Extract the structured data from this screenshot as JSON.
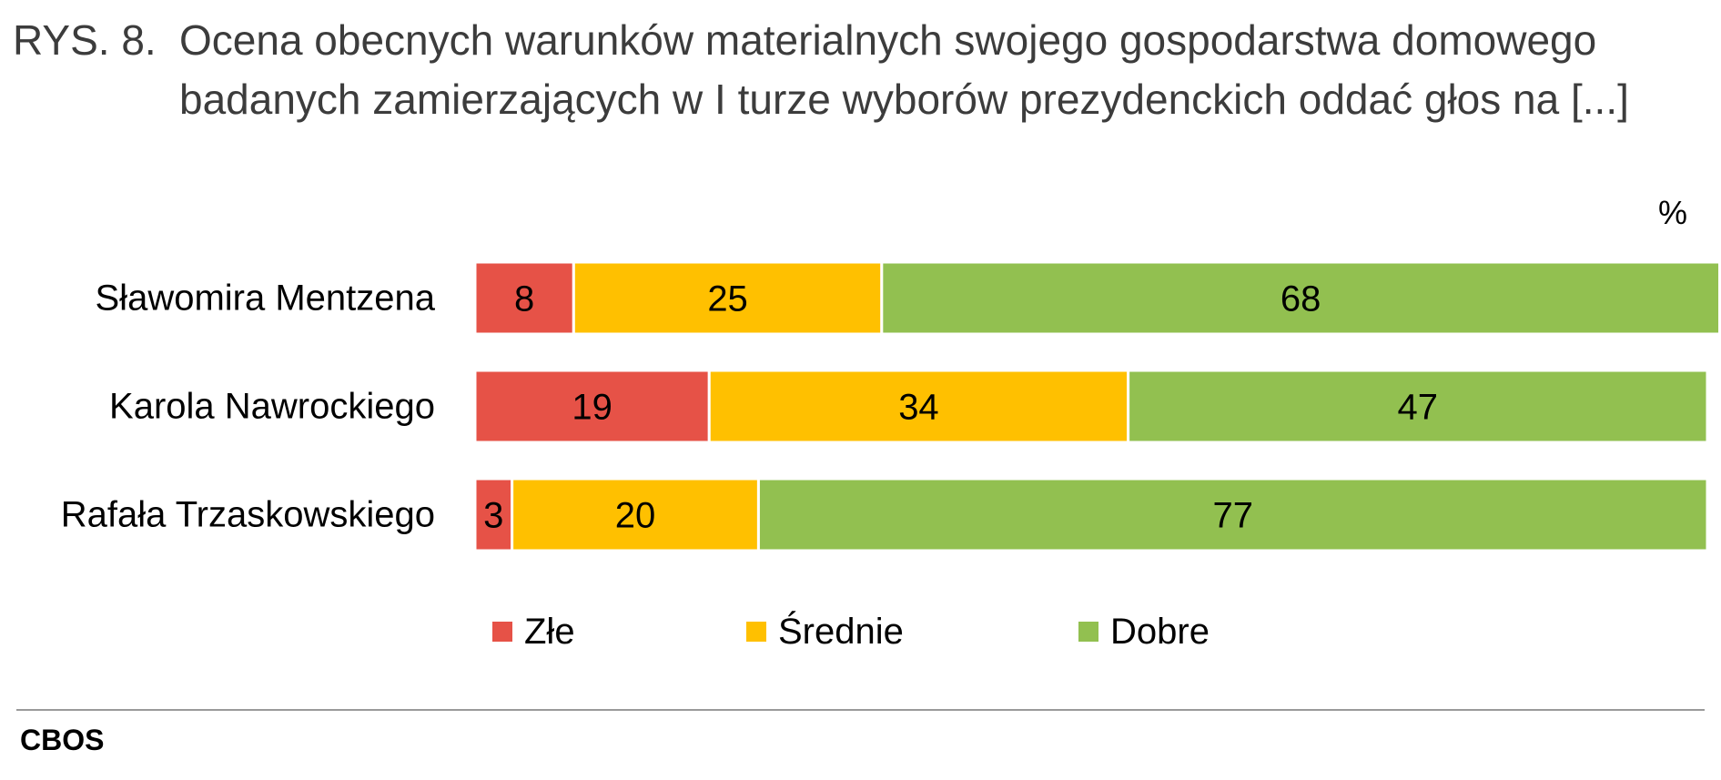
{
  "title_prefix": "RYS. 8.",
  "title": "Ocena obecnych warunków materialnych swojego gospodarstwa domowego badanych zamierzających w I turze wyborów prezydenckich oddać głos na [...]",
  "source": "CBOS",
  "chart_data": {
    "type": "bar",
    "orientation": "horizontal",
    "stacked": true,
    "unit": "%",
    "categories": [
      "Sławomira Mentzena",
      "Karola Nawrockiego",
      "Rafała Trzaskowskiego"
    ],
    "series": [
      {
        "name": "Złe",
        "color": "#e65247",
        "values": [
          8,
          19,
          3
        ]
      },
      {
        "name": "Średnie",
        "color": "#ffc000",
        "values": [
          25,
          34,
          20
        ]
      },
      {
        "name": "Dobre",
        "color": "#92c050",
        "values": [
          68,
          47,
          77
        ]
      }
    ],
    "xlim": [
      0,
      100
    ],
    "legend": "bottom",
    "grid": false
  }
}
